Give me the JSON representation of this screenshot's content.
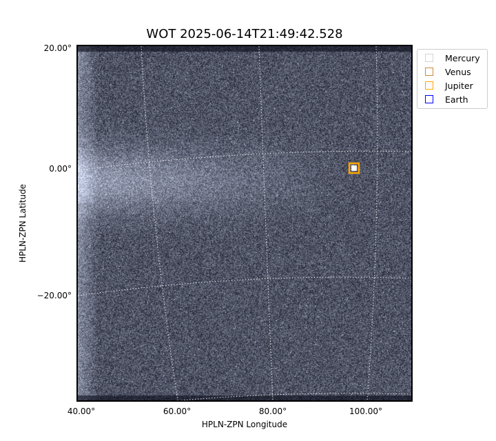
{
  "chart_data": {
    "type": "image",
    "title": "WOT 2025-06-14T21:49:42.528",
    "xlabel": "HPLN-ZPN Longitude",
    "ylabel": "HPLN-ZPN Latitude",
    "x_ticks": [
      "40.00°",
      "60.00°",
      "80.00°",
      "100.00°"
    ],
    "y_ticks": [
      "20.00°",
      "0.00°",
      "−20.00°"
    ],
    "colormap": "bone",
    "grid": true,
    "legend_position": "outside-right",
    "legend": [
      {
        "name": "Mercury",
        "color": "#d3d3d3"
      },
      {
        "name": "Venus",
        "color": "#cd853f"
      },
      {
        "name": "Jupiter",
        "color": "#ffa500"
      },
      {
        "name": "Earth",
        "color": "#0000ff"
      }
    ],
    "markers": [
      {
        "name": "Jupiter",
        "lon": 98,
        "lat": 0
      }
    ]
  }
}
